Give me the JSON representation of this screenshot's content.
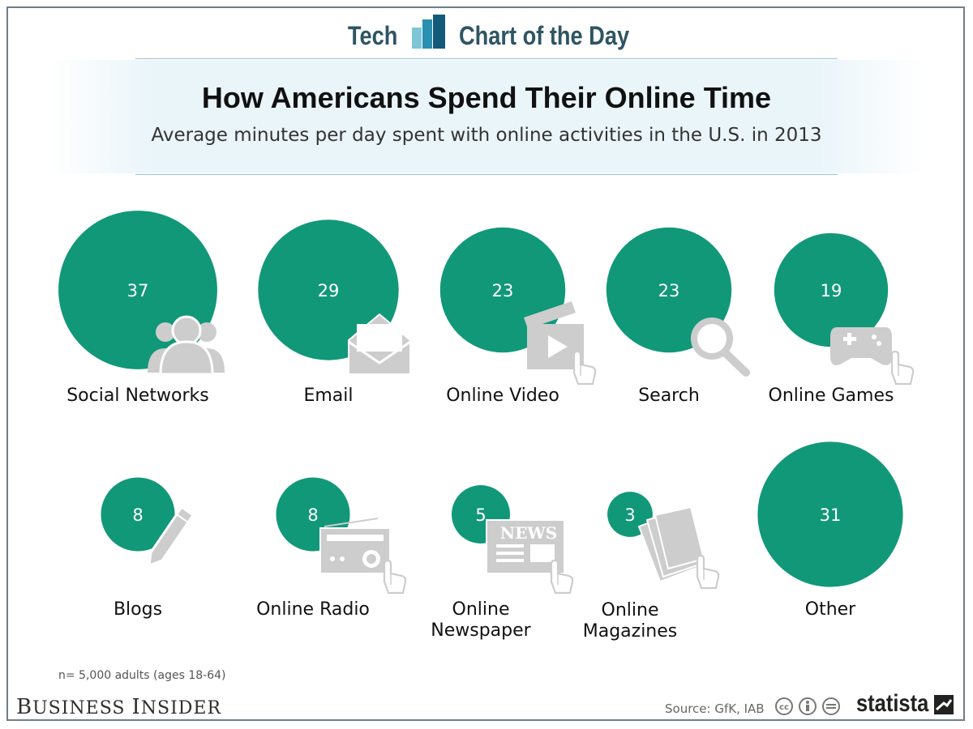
{
  "header": {
    "left_text": "Tech",
    "right_text": "Chart of the Day"
  },
  "title": "How Americans Spend Their Online Time",
  "subtitle": "Average minutes per day spent with online activities in the U.S. in 2013",
  "colors": {
    "bubble": "#119879",
    "icon": "#cdcdcd",
    "accent": "#2e5562"
  },
  "chart_data": {
    "type": "bubble",
    "title": "How Americans Spend Their Online Time",
    "subtitle": "Average minutes per day spent with online activities in the U.S. in 2013",
    "unit": "minutes per day",
    "categories": [
      "Social Networks",
      "Email",
      "Online Video",
      "Search",
      "Online Games",
      "Blogs",
      "Online Radio",
      "Online Newspaper",
      "Online Magazines",
      "Other"
    ],
    "values": [
      37,
      29,
      23,
      23,
      19,
      8,
      8,
      5,
      3,
      31
    ],
    "icons": [
      "people-icon",
      "envelope-icon",
      "video-clapper-icon",
      "magnifier-icon",
      "gamepad-icon",
      "pencil-icon",
      "radio-icon",
      "newspaper-icon",
      "magazines-icon",
      ""
    ],
    "newspaper_icon_text": "NEWS"
  },
  "footer": {
    "note": "n= 5,000 adults (ages 18-64)",
    "publisher": "Business Insider",
    "source": "Source: GfK, IAB",
    "brand": "statista"
  }
}
